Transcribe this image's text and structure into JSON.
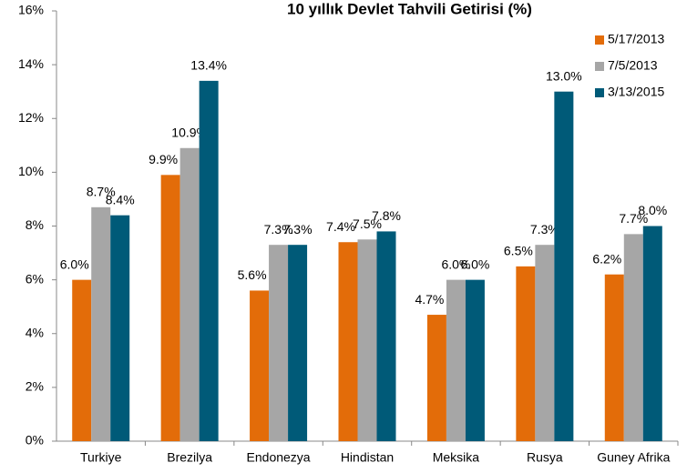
{
  "chart_data": {
    "type": "bar",
    "title": "10 yıllık Devlet Tahvili Getirisi (%)",
    "categories": [
      "Turkiye",
      "Brezilya",
      "Endonezya",
      "Hindistan",
      "Meksika",
      "Rusya",
      "Guney Afrika"
    ],
    "series": [
      {
        "name": "5/17/2013",
        "color": "#e36c09",
        "values": [
          6.0,
          9.9,
          5.6,
          7.4,
          4.7,
          6.5,
          6.2
        ],
        "value_labels": [
          "6.0%",
          "9.9%",
          "5.6%",
          "7.4%",
          "4.7%",
          "6.5%",
          "6.2%"
        ]
      },
      {
        "name": "7/5/2013",
        "color": "#a6a6a6",
        "values": [
          8.7,
          10.9,
          7.3,
          7.5,
          6.0,
          7.3,
          7.7
        ],
        "value_labels": [
          "8.7%",
          "10.9%",
          "7.3%",
          "7.5%",
          "6.0%",
          "7.3%",
          "7.7%"
        ]
      },
      {
        "name": "3/13/2015",
        "color": "#005a78",
        "values": [
          8.4,
          13.4,
          7.3,
          7.8,
          6.0,
          13.0,
          8.0
        ],
        "value_labels": [
          "8.4%",
          "13.4%",
          "7.3%",
          "7.8%",
          "6.0%",
          "13.0%",
          "8.0%"
        ]
      }
    ],
    "ylim": [
      0,
      16
    ],
    "yticks": [
      {
        "value": 0,
        "label": "0%"
      },
      {
        "value": 2,
        "label": "2%"
      },
      {
        "value": 4,
        "label": "4%"
      },
      {
        "value": 6,
        "label": "6%"
      },
      {
        "value": 8,
        "label": "8%"
      },
      {
        "value": 10,
        "label": "10%"
      },
      {
        "value": 12,
        "label": "12%"
      },
      {
        "value": 14,
        "label": "14%"
      },
      {
        "value": 16,
        "label": "16%"
      }
    ],
    "grid": false,
    "legend": "top-right"
  }
}
